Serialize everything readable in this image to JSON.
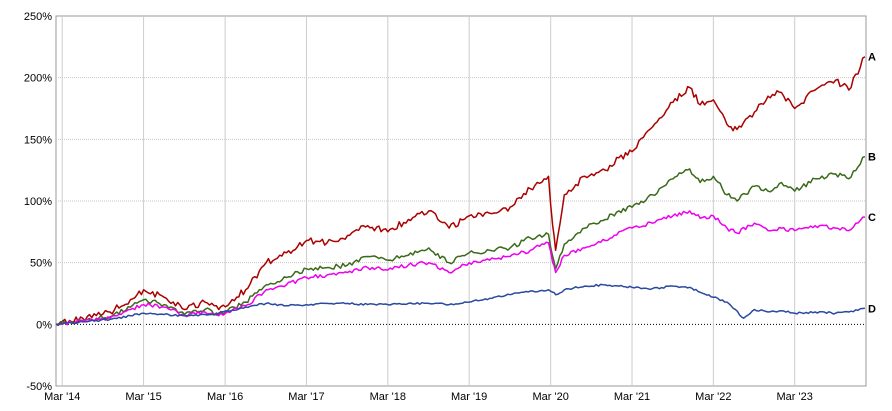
{
  "chart_data": {
    "type": "line",
    "title": "",
    "xlabel": "",
    "ylabel": "",
    "x_ticks": [
      "Mar '14",
      "Mar '15",
      "Mar '16",
      "Mar '17",
      "Mar '18",
      "Mar '19",
      "Mar '20",
      "Mar '21",
      "Mar '22",
      "Mar '23"
    ],
    "y_ticks": [
      "-50%",
      "0%",
      "50%",
      "100%",
      "150%",
      "200%",
      "250%"
    ],
    "ylim": [
      -50,
      250
    ],
    "xlim": [
      "2014-02-01",
      "2024-01-15"
    ],
    "grid": true,
    "zero_line": "dotted",
    "series": [
      {
        "name": "A",
        "color": "#aa0000",
        "points": [
          [
            "2014-02-01",
            0
          ],
          [
            "2014-06-01",
            5
          ],
          [
            "2014-10-01",
            10
          ],
          [
            "2015-01-01",
            20
          ],
          [
            "2015-03-01",
            28
          ],
          [
            "2015-06-01",
            22
          ],
          [
            "2015-09-01",
            12
          ],
          [
            "2015-12-01",
            18
          ],
          [
            "2016-02-01",
            12
          ],
          [
            "2016-06-01",
            28
          ],
          [
            "2016-09-01",
            50
          ],
          [
            "2016-12-01",
            58
          ],
          [
            "2017-03-01",
            68
          ],
          [
            "2017-06-01",
            66
          ],
          [
            "2017-09-01",
            72
          ],
          [
            "2017-12-01",
            80
          ],
          [
            "2018-03-01",
            75
          ],
          [
            "2018-06-01",
            85
          ],
          [
            "2018-09-01",
            92
          ],
          [
            "2018-12-01",
            78
          ],
          [
            "2019-03-01",
            88
          ],
          [
            "2019-06-01",
            90
          ],
          [
            "2019-09-01",
            95
          ],
          [
            "2019-12-01",
            110
          ],
          [
            "2020-02-01",
            118
          ],
          [
            "2020-02-20",
            120
          ],
          [
            "2020-03-10",
            80
          ],
          [
            "2020-03-23",
            60
          ],
          [
            "2020-05-01",
            105
          ],
          [
            "2020-08-01",
            120
          ],
          [
            "2020-11-01",
            125
          ],
          [
            "2021-01-01",
            135
          ],
          [
            "2021-03-01",
            140
          ],
          [
            "2021-06-01",
            160
          ],
          [
            "2021-09-01",
            180
          ],
          [
            "2021-11-15",
            192
          ],
          [
            "2022-01-01",
            178
          ],
          [
            "2022-03-01",
            182
          ],
          [
            "2022-05-01",
            162
          ],
          [
            "2022-06-15",
            158
          ],
          [
            "2022-09-01",
            172
          ],
          [
            "2022-11-01",
            185
          ],
          [
            "2023-01-01",
            188
          ],
          [
            "2023-03-01",
            175
          ],
          [
            "2023-06-01",
            190
          ],
          [
            "2023-09-01",
            198
          ],
          [
            "2023-10-30",
            190
          ],
          [
            "2024-01-10",
            217
          ]
        ]
      },
      {
        "name": "B",
        "color": "#3a6a1a",
        "points": [
          [
            "2014-02-01",
            0
          ],
          [
            "2014-06-01",
            3
          ],
          [
            "2014-10-01",
            6
          ],
          [
            "2015-01-01",
            14
          ],
          [
            "2015-03-01",
            20
          ],
          [
            "2015-06-01",
            16
          ],
          [
            "2015-09-01",
            8
          ],
          [
            "2015-12-01",
            12
          ],
          [
            "2016-02-01",
            8
          ],
          [
            "2016-06-01",
            18
          ],
          [
            "2016-09-01",
            32
          ],
          [
            "2016-12-01",
            38
          ],
          [
            "2017-03-01",
            45
          ],
          [
            "2017-06-01",
            46
          ],
          [
            "2017-09-01",
            48
          ],
          [
            "2017-12-01",
            55
          ],
          [
            "2018-03-01",
            52
          ],
          [
            "2018-06-01",
            56
          ],
          [
            "2018-09-01",
            62
          ],
          [
            "2018-12-01",
            50
          ],
          [
            "2019-03-01",
            58
          ],
          [
            "2019-06-01",
            60
          ],
          [
            "2019-09-01",
            62
          ],
          [
            "2019-12-01",
            70
          ],
          [
            "2020-02-01",
            72
          ],
          [
            "2020-02-20",
            73
          ],
          [
            "2020-03-10",
            55
          ],
          [
            "2020-03-23",
            45
          ],
          [
            "2020-05-01",
            65
          ],
          [
            "2020-08-01",
            78
          ],
          [
            "2020-11-01",
            85
          ],
          [
            "2021-01-01",
            92
          ],
          [
            "2021-03-01",
            95
          ],
          [
            "2021-06-01",
            105
          ],
          [
            "2021-09-01",
            118
          ],
          [
            "2021-11-15",
            126
          ],
          [
            "2022-01-01",
            115
          ],
          [
            "2022-03-01",
            120
          ],
          [
            "2022-05-01",
            105
          ],
          [
            "2022-06-15",
            100
          ],
          [
            "2022-09-01",
            112
          ],
          [
            "2022-11-01",
            108
          ],
          [
            "2023-01-01",
            115
          ],
          [
            "2023-03-01",
            108
          ],
          [
            "2023-06-01",
            118
          ],
          [
            "2023-09-01",
            122
          ],
          [
            "2023-10-30",
            118
          ],
          [
            "2024-01-10",
            136
          ]
        ]
      },
      {
        "name": "C",
        "color": "#ee00ee",
        "points": [
          [
            "2014-02-01",
            0
          ],
          [
            "2014-06-01",
            3
          ],
          [
            "2014-10-01",
            5
          ],
          [
            "2015-01-01",
            12
          ],
          [
            "2015-03-01",
            16
          ],
          [
            "2015-06-01",
            14
          ],
          [
            "2015-09-01",
            7
          ],
          [
            "2015-12-01",
            10
          ],
          [
            "2016-02-01",
            7
          ],
          [
            "2016-06-01",
            15
          ],
          [
            "2016-09-01",
            28
          ],
          [
            "2016-12-01",
            32
          ],
          [
            "2017-03-01",
            38
          ],
          [
            "2017-06-01",
            40
          ],
          [
            "2017-09-01",
            42
          ],
          [
            "2017-12-01",
            46
          ],
          [
            "2018-03-01",
            44
          ],
          [
            "2018-06-01",
            48
          ],
          [
            "2018-09-01",
            50
          ],
          [
            "2018-12-01",
            42
          ],
          [
            "2019-03-01",
            50
          ],
          [
            "2019-06-01",
            52
          ],
          [
            "2019-09-01",
            55
          ],
          [
            "2019-12-01",
            60
          ],
          [
            "2020-02-01",
            65
          ],
          [
            "2020-02-20",
            66
          ],
          [
            "2020-03-10",
            50
          ],
          [
            "2020-03-23",
            42
          ],
          [
            "2020-05-01",
            56
          ],
          [
            "2020-08-01",
            62
          ],
          [
            "2020-11-01",
            68
          ],
          [
            "2021-01-01",
            75
          ],
          [
            "2021-03-01",
            78
          ],
          [
            "2021-06-01",
            82
          ],
          [
            "2021-09-01",
            88
          ],
          [
            "2021-11-15",
            92
          ],
          [
            "2022-01-01",
            86
          ],
          [
            "2022-03-01",
            88
          ],
          [
            "2022-05-01",
            78
          ],
          [
            "2022-06-15",
            74
          ],
          [
            "2022-09-01",
            82
          ],
          [
            "2022-11-01",
            76
          ],
          [
            "2023-01-01",
            78
          ],
          [
            "2023-03-01",
            76
          ],
          [
            "2023-06-01",
            80
          ],
          [
            "2023-09-01",
            78
          ],
          [
            "2023-10-30",
            76
          ],
          [
            "2024-01-10",
            87
          ]
        ]
      },
      {
        "name": "D",
        "color": "#2a4aa0",
        "points": [
          [
            "2014-02-01",
            0
          ],
          [
            "2014-06-01",
            2
          ],
          [
            "2014-10-01",
            4
          ],
          [
            "2015-01-01",
            7
          ],
          [
            "2015-03-01",
            9
          ],
          [
            "2015-06-01",
            8
          ],
          [
            "2015-09-01",
            7
          ],
          [
            "2015-12-01",
            8
          ],
          [
            "2016-02-01",
            9
          ],
          [
            "2016-06-01",
            14
          ],
          [
            "2016-09-01",
            17
          ],
          [
            "2016-12-01",
            15
          ],
          [
            "2017-03-01",
            16
          ],
          [
            "2017-06-01",
            17
          ],
          [
            "2017-09-01",
            17
          ],
          [
            "2017-12-01",
            16
          ],
          [
            "2018-03-01",
            16
          ],
          [
            "2018-06-01",
            17
          ],
          [
            "2018-09-01",
            17
          ],
          [
            "2018-12-01",
            16
          ],
          [
            "2019-03-01",
            18
          ],
          [
            "2019-06-01",
            21
          ],
          [
            "2019-09-01",
            24
          ],
          [
            "2019-12-01",
            27
          ],
          [
            "2020-02-01",
            27
          ],
          [
            "2020-02-20",
            28
          ],
          [
            "2020-03-10",
            26
          ],
          [
            "2020-03-23",
            24
          ],
          [
            "2020-05-01",
            28
          ],
          [
            "2020-08-01",
            31
          ],
          [
            "2020-11-01",
            32
          ],
          [
            "2021-01-01",
            31
          ],
          [
            "2021-03-01",
            30
          ],
          [
            "2021-06-01",
            29
          ],
          [
            "2021-09-01",
            31
          ],
          [
            "2021-11-15",
            30
          ],
          [
            "2022-01-01",
            26
          ],
          [
            "2022-03-01",
            22
          ],
          [
            "2022-05-01",
            18
          ],
          [
            "2022-07-15",
            5
          ],
          [
            "2022-09-01",
            12
          ],
          [
            "2022-11-01",
            10
          ],
          [
            "2023-01-01",
            11
          ],
          [
            "2023-03-01",
            9
          ],
          [
            "2023-06-01",
            10
          ],
          [
            "2023-09-01",
            9
          ],
          [
            "2023-10-30",
            10
          ],
          [
            "2024-01-10",
            13
          ]
        ]
      }
    ]
  }
}
